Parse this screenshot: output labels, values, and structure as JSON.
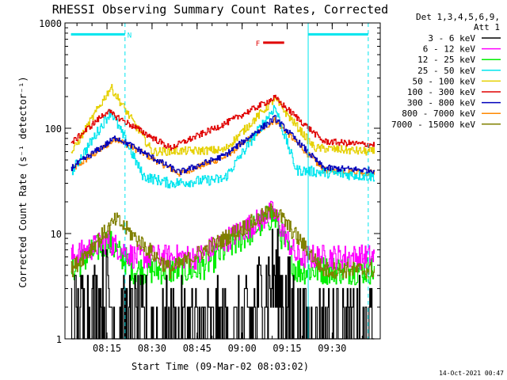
{
  "chart_data": {
    "type": "line",
    "title": "RHESSI Observing Summary Count Rates, Corrected",
    "ylabel": "Corrected Count Rate (s⁻¹ detector⁻¹)",
    "xlabel": "Start Time (09-Mar-02 08:03:02)",
    "y_scale": "log",
    "ylim": [
      1,
      1000
    ],
    "xlim": [
      "08:03",
      "09:44"
    ],
    "y_ticks": [
      1,
      10,
      100,
      1000
    ],
    "y_tick_labels": [
      "1",
      "10",
      "100",
      "1000"
    ],
    "x_ticks": [
      "08:15",
      "08:30",
      "08:45",
      "09:00",
      "09:15",
      "09:30"
    ],
    "x_tick_labels": [
      "08:15",
      "08:30",
      "08:45",
      "09:00",
      "09:15",
      "09:30"
    ],
    "legend": {
      "placement": "top-right, outside plot",
      "header": [
        "Det 1,3,4,5,6,9,",
        "Att 1"
      ]
    },
    "flags": [
      {
        "label": "N",
        "color": "#00e5ee",
        "segments": [
          [
            "08:03",
            "08:21"
          ],
          [
            "09:22",
            "09:42"
          ]
        ],
        "level": 780
      },
      {
        "label": "F",
        "color": "#e00000",
        "segments": [
          [
            "09:07",
            "09:14"
          ]
        ],
        "level": 650
      }
    ],
    "vertical_markers": [
      {
        "time": "08:21",
        "style": "dashed",
        "color": "#00e5ee"
      },
      {
        "time": "09:22",
        "style": "solid",
        "color": "#00e5ee"
      },
      {
        "time": "09:42",
        "style": "dashed",
        "color": "#00e5ee"
      }
    ],
    "series": [
      {
        "name": "3 - 6 keV",
        "color": "#000000",
        "values": [
          [
            8.1,
            1.5
          ],
          [
            8.25,
            2.5
          ],
          [
            8.33,
            1.3
          ],
          [
            8.6,
            1.0
          ],
          [
            9.0,
            1.1
          ],
          [
            9.17,
            3.8
          ],
          [
            9.25,
            2.0
          ],
          [
            9.35,
            1.0
          ]
        ]
      },
      {
        "name": "6 - 12 keV",
        "color": "#ff00ff",
        "values": [
          [
            8.05,
            6.0
          ],
          [
            8.25,
            8.5
          ],
          [
            8.4,
            6.0
          ],
          [
            8.75,
            6.0
          ],
          [
            9.17,
            16.0
          ],
          [
            9.3,
            6.0
          ],
          [
            9.7,
            6.0
          ]
        ]
      },
      {
        "name": "12 - 25 keV",
        "color": "#00ee00",
        "values": [
          [
            8.05,
            4.5
          ],
          [
            8.25,
            8.5
          ],
          [
            8.4,
            4.5
          ],
          [
            8.75,
            4.5
          ],
          [
            9.17,
            15.0
          ],
          [
            9.3,
            4.5
          ],
          [
            9.7,
            4.5
          ]
        ]
      },
      {
        "name": "25 - 50 keV",
        "color": "#00e5ee",
        "values": [
          [
            8.05,
            38
          ],
          [
            8.27,
            145
          ],
          [
            8.45,
            35
          ],
          [
            8.6,
            30
          ],
          [
            8.9,
            33
          ],
          [
            9.18,
            160
          ],
          [
            9.3,
            40
          ],
          [
            9.7,
            35
          ]
        ]
      },
      {
        "name": "50 - 100 keV",
        "color": "#e5d000",
        "values": [
          [
            8.05,
            58
          ],
          [
            8.27,
            245
          ],
          [
            8.5,
            60
          ],
          [
            8.9,
            62
          ],
          [
            9.18,
            190
          ],
          [
            9.4,
            65
          ],
          [
            9.7,
            60
          ]
        ]
      },
      {
        "name": "100 - 300 keV",
        "color": "#e00000",
        "values": [
          [
            8.05,
            72
          ],
          [
            8.25,
            145
          ],
          [
            8.6,
            65
          ],
          [
            8.9,
            110
          ],
          [
            9.18,
            195
          ],
          [
            9.45,
            75
          ],
          [
            9.7,
            70
          ]
        ]
      },
      {
        "name": "300 - 800 keV",
        "color": "#0000bb",
        "values": [
          [
            8.05,
            42
          ],
          [
            8.3,
            82
          ],
          [
            8.65,
            38
          ],
          [
            8.9,
            55
          ],
          [
            9.18,
            125
          ],
          [
            9.45,
            42
          ],
          [
            9.7,
            40
          ]
        ]
      },
      {
        "name": "800 - 7000 keV",
        "color": "#ff8800",
        "values": [
          [
            8.05,
            40
          ],
          [
            8.3,
            80
          ],
          [
            8.65,
            37
          ],
          [
            8.9,
            53
          ],
          [
            9.18,
            120
          ],
          [
            9.45,
            40
          ],
          [
            9.7,
            38
          ]
        ]
      },
      {
        "name": "7000 - 15000 keV",
        "color": "#808000",
        "values": [
          [
            8.05,
            4.5
          ],
          [
            8.3,
            13.5
          ],
          [
            8.6,
            4.5
          ],
          [
            9.18,
            17.0
          ],
          [
            9.45,
            4.5
          ],
          [
            9.7,
            4.5
          ]
        ]
      }
    ],
    "grid": false
  },
  "footer": {
    "timestamp": "14-Oct-2021 00:47"
  }
}
